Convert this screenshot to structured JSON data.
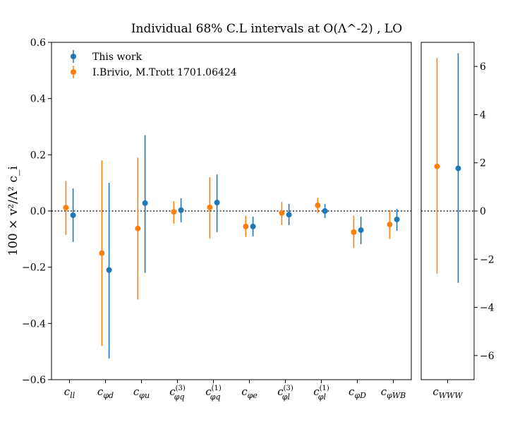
{
  "chart_data": [
    {
      "type": "scatter",
      "title": "Individual 68% C.L intervals at O(Λ^-2) , LO",
      "ylabel": "100 × v²/Λ² c_i",
      "xlabel": "",
      "ylim": [
        -0.6,
        0.6
      ],
      "yticks": [
        -0.6,
        -0.4,
        -0.2,
        0.0,
        0.2,
        0.4,
        0.6
      ],
      "ytick_labels": [
        "−0.6",
        "−0.4",
        "−0.2",
        "0.0",
        "0.2",
        "0.4",
        "0.6"
      ],
      "reference_line": 0,
      "legend_position": "top-left",
      "categories": [
        {
          "base": "c",
          "sub": "ll",
          "sup": ""
        },
        {
          "base": "c",
          "sub": "φd",
          "sup": ""
        },
        {
          "base": "c",
          "sub": "φu",
          "sup": ""
        },
        {
          "base": "c",
          "sub": "φq",
          "sup": "(3)"
        },
        {
          "base": "c",
          "sub": "φq",
          "sup": "(1)"
        },
        {
          "base": "c",
          "sub": "φe",
          "sup": ""
        },
        {
          "base": "c",
          "sub": "φl",
          "sup": "(3)"
        },
        {
          "base": "c",
          "sub": "φl",
          "sup": "(1)"
        },
        {
          "base": "c",
          "sub": "φD",
          "sup": ""
        },
        {
          "base": "c",
          "sub": "φWB",
          "sup": ""
        }
      ],
      "series": [
        {
          "name": "This work",
          "color": "#1f77b4",
          "offset": 0.1,
          "values": [
            -0.015,
            -0.21,
            0.028,
            0.003,
            0.03,
            -0.055,
            -0.013,
            0.0,
            -0.068,
            -0.03
          ],
          "low": [
            -0.11,
            -0.525,
            -0.22,
            -0.04,
            -0.075,
            -0.09,
            -0.05,
            -0.025,
            -0.118,
            -0.07
          ],
          "high": [
            0.08,
            0.1,
            0.27,
            0.045,
            0.13,
            -0.02,
            0.025,
            0.025,
            -0.02,
            0.008
          ]
        },
        {
          "name": "I.Brivio,  M.Trott 1701.06424",
          "color": "#ff7f0e",
          "offset": -0.1,
          "values": [
            0.012,
            -0.15,
            -0.062,
            -0.003,
            0.013,
            -0.055,
            -0.007,
            0.02,
            -0.075,
            -0.048
          ],
          "low": [
            -0.085,
            -0.48,
            -0.315,
            -0.045,
            -0.098,
            -0.092,
            -0.05,
            -0.007,
            -0.132,
            -0.1
          ],
          "high": [
            0.107,
            0.18,
            0.19,
            0.035,
            0.12,
            -0.018,
            0.032,
            0.047,
            -0.017,
            0.002
          ]
        }
      ]
    },
    {
      "type": "scatter",
      "ylim": [
        -7,
        7
      ],
      "yticks": [
        -6,
        -4,
        -2,
        0,
        2,
        4,
        6
      ],
      "ytick_labels": [
        "−6",
        "−4",
        "−2",
        "0",
        "2",
        "4",
        "6"
      ],
      "yaxis_side": "right",
      "reference_line": 0,
      "categories": [
        {
          "base": "c",
          "sub": "WWW",
          "sup": ""
        }
      ],
      "series": [
        {
          "name": "This work",
          "color": "#1f77b4",
          "offset": 0.2,
          "values": [
            1.77
          ],
          "low": [
            -2.98
          ],
          "high": [
            6.55
          ]
        },
        {
          "name": "I.Brivio,  M.Trott 1701.06424",
          "color": "#ff7f0e",
          "offset": -0.2,
          "values": [
            1.85
          ],
          "low": [
            -2.6
          ],
          "high": [
            6.35
          ]
        }
      ]
    }
  ]
}
